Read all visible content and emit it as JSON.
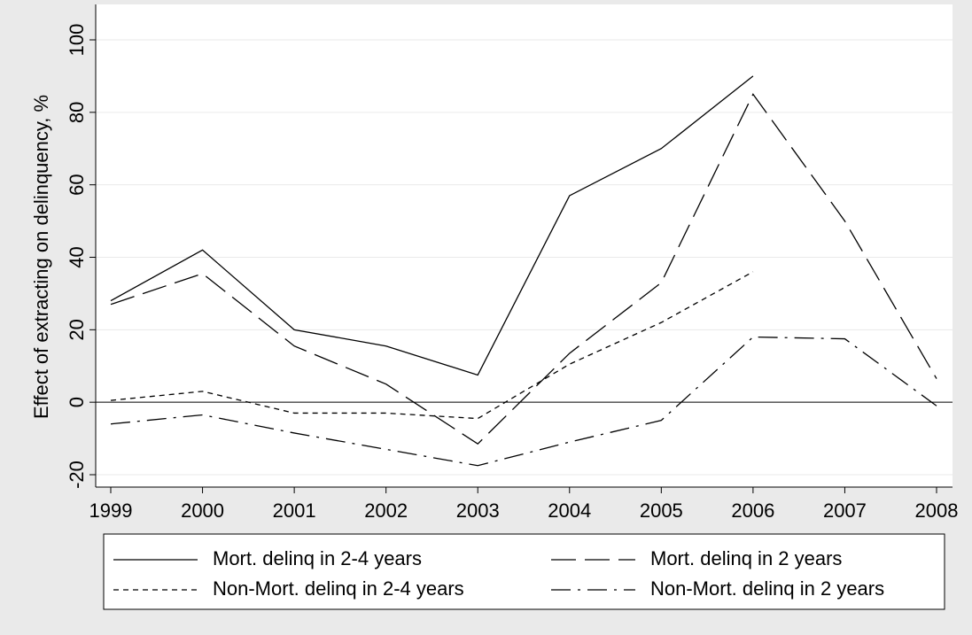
{
  "chart_data": {
    "type": "line",
    "y_label": "Effect of extracting on delinquency, %",
    "x": [
      1999,
      2000,
      2001,
      2002,
      2003,
      2004,
      2005,
      2006,
      2007,
      2008
    ],
    "xlim": [
      1999,
      2008
    ],
    "xticks": [
      1999,
      2000,
      2001,
      2002,
      2003,
      2004,
      2005,
      2006,
      2007,
      2008
    ],
    "ylim": [
      -20,
      100
    ],
    "yticks": [
      -20,
      0,
      20,
      40,
      60,
      80,
      100
    ],
    "grid": true,
    "reference_line": 0,
    "legend": "bottom",
    "series": [
      {
        "name": "Mort. delinq in 2-4 years",
        "color": "#000000",
        "dash": "solid",
        "values": [
          28,
          42,
          20,
          15.5,
          7.5,
          57,
          70,
          90,
          null,
          null
        ]
      },
      {
        "name": "Mort. delinq in 2 years",
        "color": "#000000",
        "dash": "dashed",
        "values": [
          27,
          35.5,
          15.5,
          5,
          -11.5,
          13.5,
          33,
          85,
          50,
          6.5
        ]
      },
      {
        "name": "Non-Mort. delinq in 2-4 years",
        "color": "#000000",
        "dash": "dotted",
        "values": [
          0.5,
          3,
          -3,
          -3,
          -4.5,
          10.5,
          22,
          36,
          null,
          null
        ]
      },
      {
        "name": "Non-Mort. delinq in 2 years",
        "color": "#000000",
        "dash": "dashdot",
        "values": [
          -6,
          -3.5,
          -8.5,
          -13,
          -17.5,
          -11,
          -5,
          18,
          17.5,
          -1
        ]
      }
    ]
  }
}
